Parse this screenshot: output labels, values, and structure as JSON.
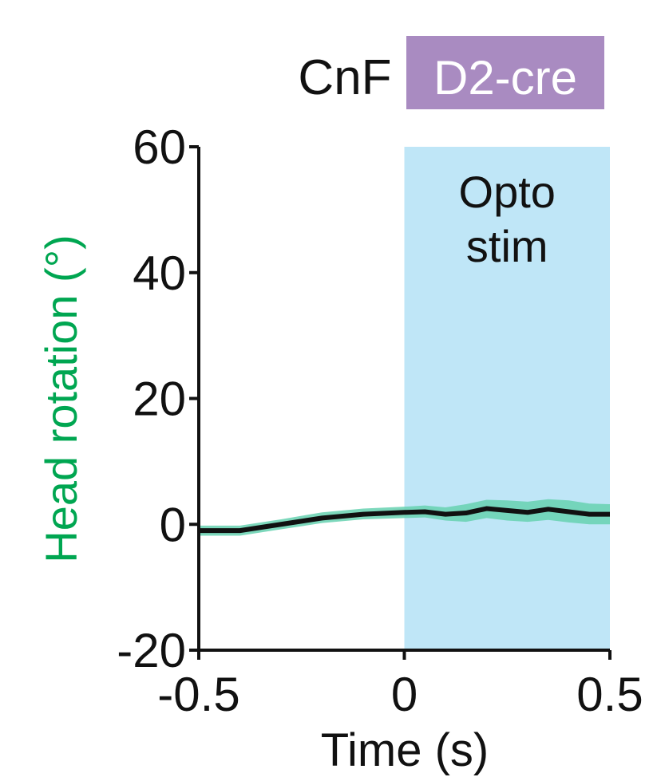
{
  "header": {
    "region_label": "CnF",
    "genotype_label": "D2-cre",
    "genotype_color": "#a98bc1"
  },
  "chart_data": {
    "type": "line",
    "title": "",
    "xlabel": "Time (s)",
    "ylabel": "Head rotation (°)",
    "ylabel_color": "#00a651",
    "xlim": [
      -0.5,
      0.5
    ],
    "ylim": [
      -20,
      60
    ],
    "xticks": [
      -0.5,
      0,
      0.5
    ],
    "xtick_labels": [
      "-0.5",
      "0",
      "0.5"
    ],
    "yticks": [
      -20,
      0,
      20,
      40,
      60
    ],
    "ytick_labels": [
      "-20",
      "0",
      "20",
      "40",
      "60"
    ],
    "grid": false,
    "shaded_region": {
      "x_start": 0,
      "x_end": 0.5,
      "label_line1": "Opto",
      "label_line2": "stim",
      "color": "#bfe6f7"
    },
    "series": [
      {
        "line_color": "#111111",
        "band_color": "#66d1b0",
        "x": [
          -0.5,
          -0.4,
          -0.3,
          -0.2,
          -0.1,
          0.0,
          0.05,
          0.1,
          0.15,
          0.2,
          0.25,
          0.3,
          0.35,
          0.4,
          0.45,
          0.5
        ],
        "y": [
          -1.0,
          -1.0,
          0.0,
          1.0,
          1.6,
          1.9,
          2.0,
          1.6,
          1.8,
          2.5,
          2.2,
          1.9,
          2.4,
          2.0,
          1.6,
          1.6
        ],
        "y_lower": [
          -1.8,
          -1.8,
          -0.8,
          0.2,
          0.8,
          1.0,
          1.1,
          0.6,
          0.4,
          1.0,
          0.6,
          0.4,
          0.7,
          0.3,
          0.0,
          0.0
        ],
        "y_upper": [
          -0.2,
          -0.2,
          0.8,
          1.9,
          2.5,
          2.8,
          3.0,
          2.7,
          3.2,
          3.9,
          3.8,
          3.6,
          4.0,
          3.8,
          3.3,
          3.2
        ]
      }
    ]
  }
}
